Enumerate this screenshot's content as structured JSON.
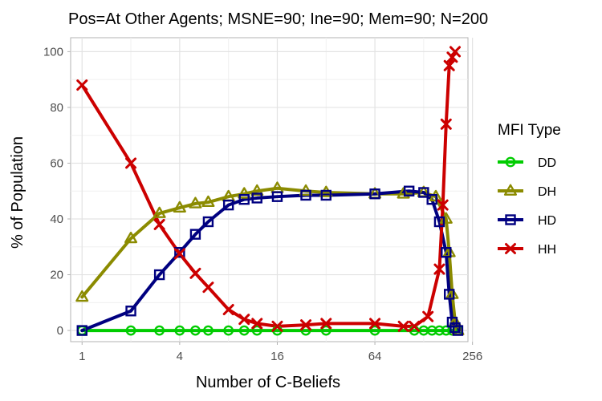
{
  "chart_data": {
    "type": "line",
    "title": "Pos=At Other Agents; MSNE=90; Ine=90; Mem=90; N=200",
    "xlabel": "Number of C-Beliefs",
    "ylabel": "% of Population",
    "x_scale": "log2",
    "xlim": [
      0.85,
      240
    ],
    "ylim": [
      -4,
      105
    ],
    "x_ticks": [
      1,
      4,
      16,
      64,
      256
    ],
    "x_tick_labels": [
      "1",
      "4",
      "16",
      "64",
      "256"
    ],
    "y_ticks": [
      0,
      20,
      40,
      60,
      80,
      100
    ],
    "y_tick_labels": [
      "0",
      "20",
      "40",
      "60",
      "80",
      "100"
    ],
    "grid": true,
    "legend": {
      "title": "MFI Type",
      "placement": "right"
    },
    "series": [
      {
        "name": "DD",
        "color": "#00cc00",
        "marker": "circle",
        "x": [
          1,
          2,
          3,
          4,
          5,
          6,
          8,
          10,
          12,
          16,
          24,
          32,
          64,
          112,
          128,
          144,
          160,
          176,
          192,
          208
        ],
        "y": [
          0,
          0,
          0,
          0,
          0,
          0,
          0,
          0,
          0,
          0,
          0,
          0,
          0,
          0,
          0,
          0,
          0,
          0,
          0,
          0
        ]
      },
      {
        "name": "DH",
        "color": "#8b8b00",
        "marker": "triangle",
        "x": [
          1,
          2,
          3,
          4,
          5,
          6,
          8,
          10,
          12,
          16,
          24,
          32,
          64,
          96,
          128,
          152,
          176,
          184,
          192,
          200,
          208
        ],
        "y": [
          12,
          33,
          42,
          44,
          45.5,
          46,
          48,
          49,
          50,
          51,
          50,
          49.5,
          49,
          49,
          49.5,
          48,
          40,
          28,
          13,
          3,
          0
        ]
      },
      {
        "name": "HD",
        "color": "#000080",
        "marker": "square",
        "x": [
          1,
          2,
          3,
          4,
          5,
          6,
          8,
          10,
          12,
          16,
          24,
          32,
          64,
          104,
          128,
          144,
          160,
          176,
          184,
          192,
          200,
          208
        ],
        "y": [
          0,
          7,
          20,
          28,
          34.5,
          39,
          45,
          47,
          47.5,
          48,
          48.5,
          48.5,
          49,
          50,
          49.5,
          47,
          39,
          28,
          13,
          3,
          1,
          0
        ]
      },
      {
        "name": "HH",
        "color": "#cc0000",
        "marker": "x",
        "x": [
          1,
          2,
          3,
          4,
          5,
          6,
          8,
          10,
          12,
          16,
          24,
          32,
          64,
          96,
          112,
          136,
          160,
          168,
          176,
          184,
          192,
          200
        ],
        "y": [
          88,
          60,
          38,
          27.5,
          20.5,
          15.5,
          7.5,
          4,
          2.5,
          1.5,
          2,
          2.5,
          2.5,
          1.5,
          1.5,
          5,
          22,
          45,
          74,
          95,
          98,
          100
        ]
      }
    ]
  }
}
